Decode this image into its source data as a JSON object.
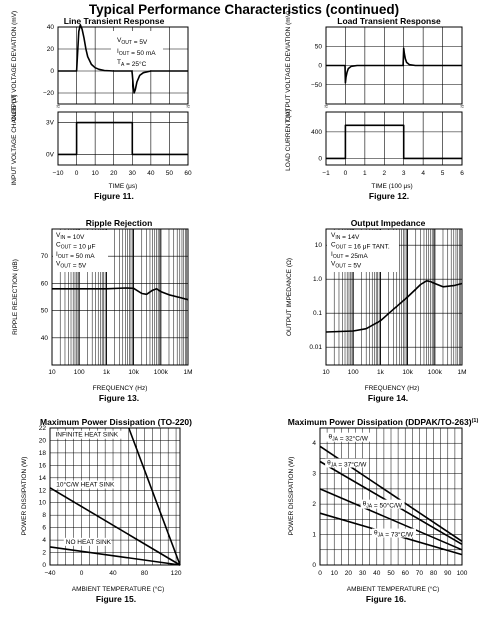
{
  "page_title": "Typical Performance Characteristics (continued)",
  "chart_data": [
    {
      "type": "line",
      "title": "Line Transient Response",
      "caption": "Figure 11.",
      "xlabel": "TIME (μs)",
      "ylabel_top": "OUTPUT VOLTAGE DEVIATION (mV)",
      "ylabel_bottom": "INPUT VOLTAGE CHANGE (V)",
      "xlim": [
        -10,
        60
      ],
      "xticks": [
        "−10",
        "0",
        "10",
        "20",
        "30",
        "40",
        "50",
        "60"
      ],
      "yticks_top": [
        "40",
        "20",
        "0",
        "−20"
      ],
      "yticks_bottom": [
        "3V",
        "0V"
      ],
      "annotation": [
        "V_OUT = 5V",
        "I_OUT = 50 mA",
        "T_A = 25°C"
      ],
      "series": [
        {
          "x": [
            -10,
            0,
            0.6,
            1.2,
            2,
            3,
            4,
            5,
            6,
            8,
            10,
            12,
            15,
            20,
            25,
            29.8,
            30,
            30.5,
            31,
            31.6,
            32.5,
            34,
            36,
            40,
            60
          ],
          "y": [
            0,
            0,
            18,
            36,
            42,
            38,
            30,
            20,
            13,
            6,
            3,
            1.5,
            0.5,
            0,
            0,
            0,
            -3,
            -13,
            -20,
            -17,
            -10,
            -4,
            -1.5,
            0,
            0
          ]
        },
        {
          "x": [
            -10,
            0,
            0,
            30,
            30,
            60
          ],
          "y": [
            0,
            0,
            3,
            3,
            0,
            0
          ]
        }
      ]
    },
    {
      "type": "line",
      "title": "Load Transient Response",
      "caption": "Figure 12.",
      "xlabel": "TIME (100 μs)",
      "ylabel_top": "OUTPUT VOLTAGE DEVIATION (mV)",
      "ylabel_bottom": "LOAD CURRENT (A)",
      "xlim": [
        -1,
        6
      ],
      "xticks": [
        "−1",
        "0",
        "1",
        "2",
        "3",
        "4",
        "5",
        "6"
      ],
      "yticks_top": [
        "50",
        "0",
        "−50"
      ],
      "yticks_bottom": [
        "400",
        "0"
      ],
      "series": [
        {
          "x": [
            -1,
            -0.02,
            0,
            0.03,
            0.08,
            0.15,
            0.3,
            0.6,
            1,
            2.97,
            3,
            3.03,
            3.08,
            3.15,
            3.3,
            3.6,
            4,
            6
          ],
          "y": [
            0,
            0,
            -45,
            -30,
            -18,
            -8,
            -2,
            0,
            0,
            0,
            45,
            32,
            18,
            8,
            2,
            0,
            0,
            0
          ]
        },
        {
          "x": [
            -1,
            0,
            0,
            3,
            3,
            6
          ],
          "y": [
            0,
            0,
            500,
            500,
            0,
            0
          ]
        }
      ]
    },
    {
      "type": "line",
      "title": "Ripple Rejection",
      "caption": "Figure 13.",
      "xlabel": "FREQUENCY (Hz)",
      "ylabel": "RIPPLE REJECTION (dB)",
      "xscale": "log",
      "xlim": [
        10,
        1000000
      ],
      "ylim": [
        30,
        80
      ],
      "xticks": [
        "10",
        "100",
        "1k",
        "10k",
        "100k",
        "1M"
      ],
      "yticks": [
        "70",
        "60",
        "50",
        "40"
      ],
      "annotation": [
        "V_IN = 10V",
        "C_OUT = 10 μF",
        "I_OUT = 50 mA",
        "V_OUT = 5V"
      ],
      "series": [
        {
          "x": [
            10,
            100,
            1000,
            5000,
            10000,
            20000,
            30000,
            50000,
            70000,
            100000,
            200000,
            500000,
            1000000
          ],
          "y": [
            58,
            58,
            58,
            58.3,
            58.2,
            56.3,
            56,
            57.5,
            58,
            57,
            55.8,
            54.8,
            54
          ]
        }
      ]
    },
    {
      "type": "line",
      "title": "Output Impedance",
      "caption": "Figure 14.",
      "xlabel": "FREQUENCY (Hz)",
      "ylabel": "OUTPUT IMPEDANCE (Ω)",
      "xscale": "log",
      "yscale": "log",
      "xlim": [
        10,
        1000000
      ],
      "ylim": [
        0.003,
        30
      ],
      "xticks": [
        "10",
        "100",
        "1k",
        "10k",
        "100k",
        "1M"
      ],
      "yticks": [
        "10",
        "1.0",
        "0.1",
        "0.01"
      ],
      "annotation": [
        "V_IN = 14V",
        "C_OUT = 16 μF TANT.",
        "I_OUT = 25mA",
        "V_OUT = 5V"
      ],
      "series": [
        {
          "x": [
            10,
            100,
            300,
            1000,
            3000,
            10000,
            30000,
            50000,
            70000,
            100000,
            200000,
            500000,
            1000000
          ],
          "y": [
            0.028,
            0.03,
            0.035,
            0.06,
            0.13,
            0.3,
            0.7,
            0.9,
            0.85,
            0.75,
            0.6,
            0.65,
            0.75
          ]
        }
      ]
    },
    {
      "type": "line",
      "title": "Maximum Power Dissipation (TO-220)",
      "caption": "Figure 15.",
      "xlabel": "AMBIENT TEMPERATURE (°C)",
      "ylabel": "POWER DISSIPATION (W)",
      "xlim": [
        -40,
        125
      ],
      "ylim": [
        0,
        22
      ],
      "xticks": [
        "−40",
        "0",
        "40",
        "80",
        "120"
      ],
      "yticks": [
        "22",
        "20",
        "18",
        "16",
        "14",
        "12",
        "10",
        "8",
        "6",
        "4",
        "2",
        "0"
      ],
      "series": [
        {
          "name": "INFINITE HEAT SINK",
          "x": [
            60,
            125
          ],
          "y": [
            22,
            0
          ]
        },
        {
          "name": "10°C/W HEAT SINK",
          "x": [
            -40,
            125
          ],
          "y": [
            12.4,
            0
          ]
        },
        {
          "name": "NO HEAT SINK",
          "x": [
            -40,
            125
          ],
          "y": [
            2.9,
            0
          ]
        }
      ]
    },
    {
      "type": "line",
      "title": "Maximum Power Dissipation (DDPAK/TO-263)",
      "title_superscript": "(1)",
      "caption": "Figure 16.",
      "xlabel": "AMBIENT TEMPERATURE (°C)",
      "ylabel": "POWER DISSIPATION (W)",
      "xlim": [
        0,
        100
      ],
      "ylim": [
        0,
        4.5
      ],
      "xticks": [
        "0",
        "10",
        "20",
        "30",
        "40",
        "50",
        "60",
        "70",
        "80",
        "90",
        "100"
      ],
      "yticks": [
        "4",
        "3",
        "2",
        "1",
        "0"
      ],
      "series": [
        {
          "name": "θJA = 32°C/W",
          "x": [
            0,
            100
          ],
          "y": [
            3.9,
            0.78
          ]
        },
        {
          "name": "θJA = 37°C/W",
          "x": [
            0,
            100
          ],
          "y": [
            3.4,
            0.68
          ]
        },
        {
          "name": "θJA = 50°C/W",
          "x": [
            0,
            100
          ],
          "y": [
            2.5,
            0.5
          ]
        },
        {
          "name": "θJA = 73°C/W",
          "x": [
            0,
            100
          ],
          "y": [
            1.7,
            0.34
          ]
        }
      ]
    }
  ]
}
